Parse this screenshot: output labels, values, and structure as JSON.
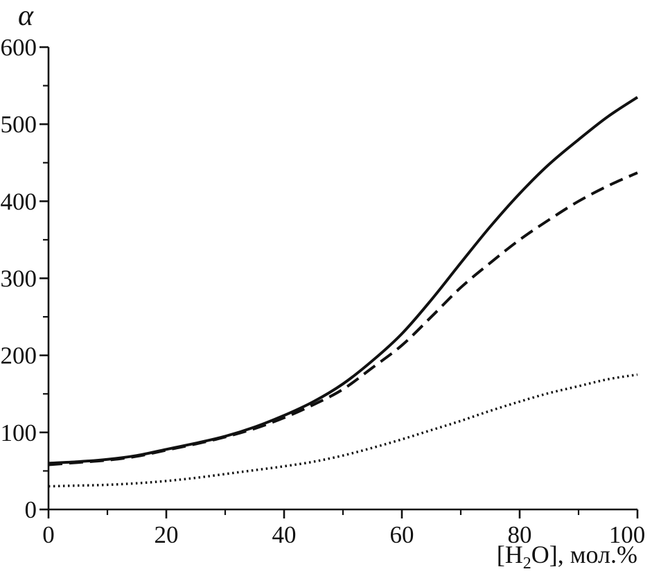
{
  "chart_data": {
    "type": "line",
    "title": "",
    "ylabel": "α",
    "xlabel": "[H2O], мол.%",
    "xlabel_parts": {
      "pre": "[H",
      "sub": "2",
      "post": "O], мол.%"
    },
    "xlim": [
      0,
      100
    ],
    "ylim": [
      0,
      600
    ],
    "x_major_ticks": [
      0,
      20,
      40,
      60,
      80,
      100
    ],
    "x_minor_ticks": [
      10,
      30,
      50,
      70,
      90
    ],
    "y_major_ticks": [
      0,
      100,
      200,
      300,
      400,
      500,
      600
    ],
    "y_minor_ticks": [
      50,
      150,
      250,
      350,
      450,
      550
    ],
    "grid": false,
    "legend": "none",
    "background_color": "#ffffff",
    "axis_color": "#111111",
    "x": [
      0,
      5,
      10,
      15,
      20,
      25,
      30,
      35,
      40,
      45,
      50,
      55,
      60,
      65,
      70,
      75,
      80,
      85,
      90,
      95,
      100
    ],
    "series": [
      {
        "name": "curve-solid",
        "line_style": "solid",
        "color": "#111111",
        "values": [
          60,
          62,
          65,
          70,
          78,
          86,
          95,
          107,
          122,
          140,
          163,
          193,
          228,
          272,
          320,
          367,
          410,
          448,
          480,
          510,
          535
        ]
      },
      {
        "name": "curve-dashed",
        "line_style": "dashed",
        "color": "#111111",
        "values": [
          58,
          61,
          64,
          69,
          77,
          85,
          94,
          105,
          119,
          136,
          156,
          184,
          213,
          250,
          288,
          320,
          350,
          376,
          400,
          420,
          437
        ]
      },
      {
        "name": "curve-dotted",
        "line_style": "dotted",
        "color": "#111111",
        "values": [
          30,
          31,
          32,
          34,
          37,
          41,
          46,
          51,
          56,
          62,
          70,
          80,
          91,
          103,
          115,
          128,
          140,
          151,
          160,
          169,
          175
        ]
      }
    ]
  }
}
